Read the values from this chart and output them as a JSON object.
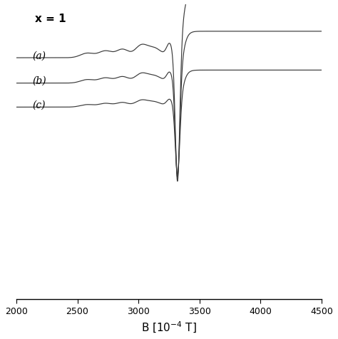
{
  "title": "x = 1",
  "xlabel": "B [10$^{-4}$ T]",
  "xlim": [
    2000,
    4500
  ],
  "xticks": [
    2000,
    2500,
    3000,
    3500,
    4000,
    4500
  ],
  "labels": [
    "(a)",
    "(b)",
    "(c)"
  ],
  "offsets": [
    0.72,
    0.35,
    0.0
  ],
  "amplitudes": [
    0.55,
    0.42,
    0.3
  ],
  "line_color": "#3a3a3a",
  "background": "#ffffff"
}
